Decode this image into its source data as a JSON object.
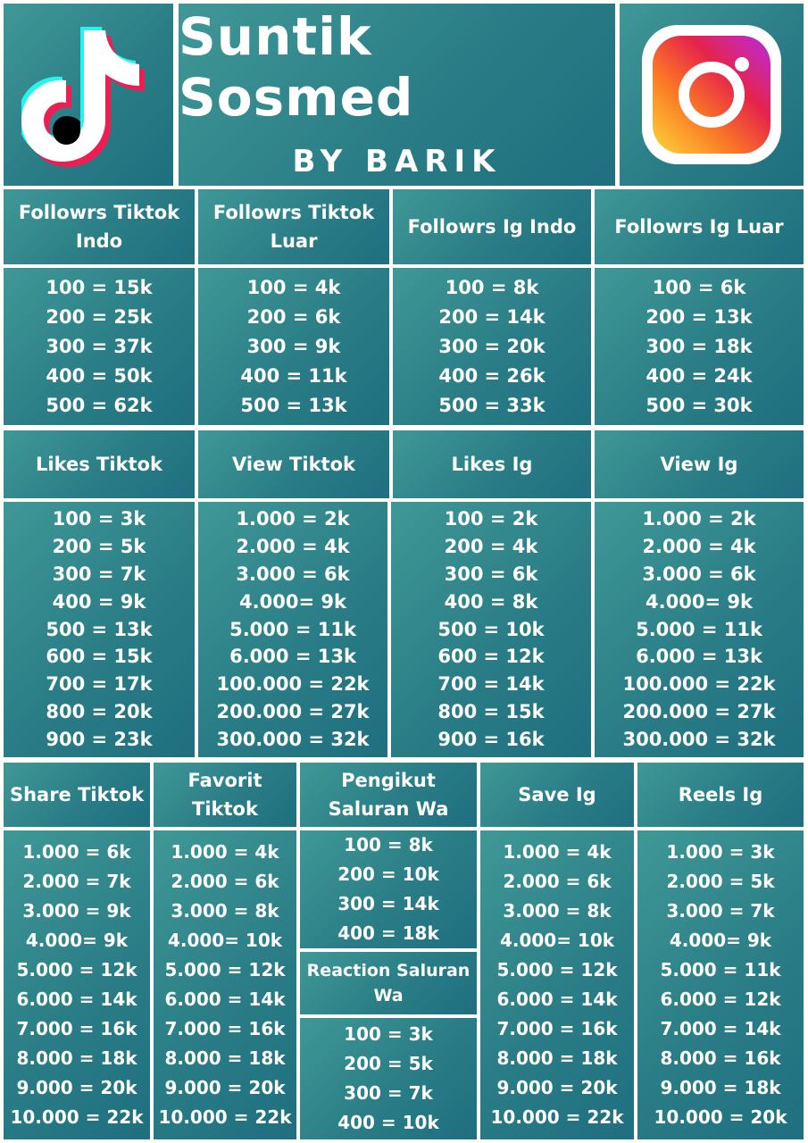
{
  "header": {
    "title": "Suntik Sosmed",
    "subtitle": "BY BARIK",
    "left_logo": "tiktok-logo-icon",
    "right_logo": "instagram-logo-icon"
  },
  "colors": {
    "panel": "#2a7d86",
    "text": "#ffffff",
    "border": "#ffffff"
  },
  "row1": [
    {
      "title": "Followrs Tiktok Indo",
      "prices": [
        "100 = 15k",
        "200 = 25k",
        "300 = 37k",
        "400 = 50k",
        "500 = 62k"
      ]
    },
    {
      "title": "Followrs Tiktok Luar",
      "prices": [
        "100 = 4k",
        "200 = 6k",
        "300 = 9k",
        "400 = 11k",
        "500 = 13k"
      ]
    },
    {
      "title": "Followrs Ig Indo",
      "prices": [
        "100 = 8k",
        "200 = 14k",
        "300 = 20k",
        "400 = 26k",
        "500 = 33k"
      ]
    },
    {
      "title": "Followrs Ig Luar",
      "prices": [
        "100 = 6k",
        "200 = 13k",
        "300 = 18k",
        "400 = 24k",
        "500 = 30k"
      ]
    }
  ],
  "row2": [
    {
      "title": "Likes Tiktok",
      "prices": [
        "100 = 3k",
        "200 = 5k",
        "300 = 7k",
        "400 = 9k",
        "500 = 13k",
        "600 = 15k",
        "700 = 17k",
        "800 = 20k",
        "900 = 23k"
      ]
    },
    {
      "title": "View Tiktok",
      "prices": [
        "1.000 = 2k",
        "2.000 = 4k",
        "3.000 = 6k",
        "4.000= 9k",
        "5.000 = 11k",
        "6.000 = 13k",
        "100.000 = 22k",
        "200.000 = 27k",
        "300.000 = 32k"
      ]
    },
    {
      "title": "Likes Ig",
      "prices": [
        "100 = 2k",
        "200 = 4k",
        "300 = 6k",
        "400 = 8k",
        "500 = 10k",
        "600 = 12k",
        "700 = 14k",
        "800 = 15k",
        "900 = 16k"
      ]
    },
    {
      "title": "View Ig",
      "prices": [
        "1.000 = 2k",
        "2.000 = 4k",
        "3.000 = 6k",
        "4.000= 9k",
        "5.000 = 11k",
        "6.000 = 13k",
        "100.000 = 22k",
        "200.000 = 27k",
        "300.000 = 32k"
      ]
    }
  ],
  "row3": {
    "share_tiktok": {
      "title": "Share Tiktok",
      "prices": [
        "1.000 = 6k",
        "2.000 = 7k",
        "3.000 = 9k",
        "4.000= 9k",
        "5.000 = 12k",
        "6.000 = 14k",
        "7.000 = 16k",
        "8.000 = 18k",
        "9.000 = 20k",
        "10.000 = 22k"
      ]
    },
    "favorit_tiktok": {
      "title": "Favorit Tiktok",
      "prices": [
        "1.000 = 4k",
        "2.000 = 6k",
        "3.000 = 8k",
        "4.000= 10k",
        "5.000 = 12k",
        "6.000 = 14k",
        "7.000 = 16k",
        "8.000 = 18k",
        "9.000 = 20k",
        "10.000 = 22k"
      ]
    },
    "pengikut_wa": {
      "title": "Pengikut Saluran Wa",
      "prices": [
        "100 = 8k",
        "200 = 10k",
        "300 = 14k",
        "400 = 18k"
      ]
    },
    "reaction_wa": {
      "title": "Reaction Saluran Wa",
      "prices": [
        "100 = 3k",
        "200 = 5k",
        "300 = 7k",
        "400 = 10k"
      ]
    },
    "save_ig": {
      "title": "Save Ig",
      "prices": [
        "1.000 = 4k",
        "2.000 = 6k",
        "3.000 = 8k",
        "4.000= 10k",
        "5.000 = 12k",
        "6.000 = 14k",
        "7.000 = 16k",
        "8.000 = 18k",
        "9.000 = 20k",
        "10.000 = 22k"
      ]
    },
    "reels_ig": {
      "title": "Reels Ig",
      "prices": [
        "1.000 = 3k",
        "2.000 = 5k",
        "3.000 = 7k",
        "4.000= 9k",
        "5.000 = 11k",
        "6.000 = 12k",
        "7.000 = 14k",
        "8.000 = 16k",
        "9.000 = 18k",
        "10.000 = 20k"
      ]
    }
  }
}
